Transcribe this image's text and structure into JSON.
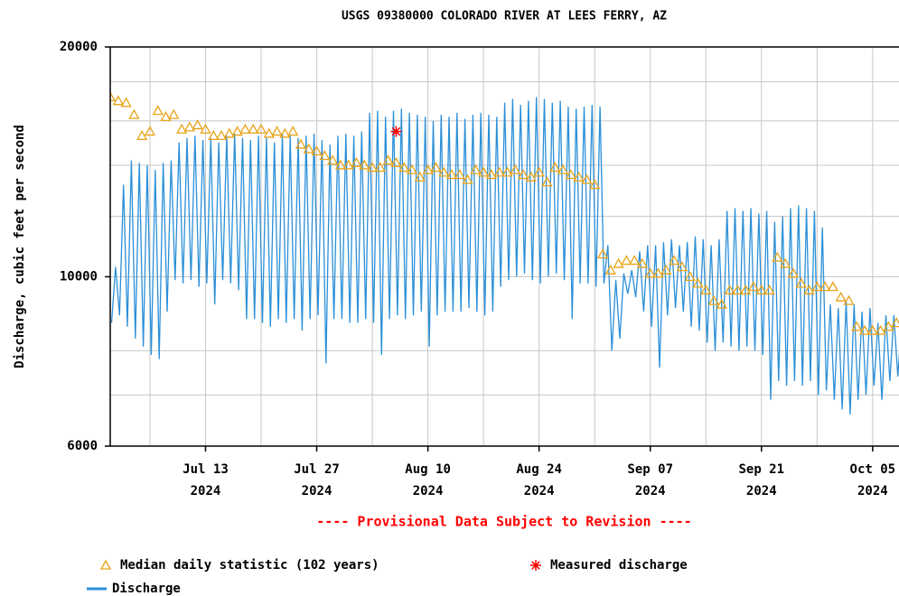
{
  "chart_data": {
    "type": "line",
    "title": "USGS 09380000 COLORADO RIVER AT LEES FERRY, AZ",
    "ylabel": "Discharge, cubic feet per second",
    "note": "---- Provisional Data Subject to Revision ----",
    "yscale": "log",
    "ylim": [
      6000,
      20000
    ],
    "yticks": [
      6000,
      10000,
      20000
    ],
    "ygrid_minor": [
      7000,
      8000,
      12000,
      14000,
      16000,
      18000
    ],
    "xlim": [
      "2024-07-01",
      "2024-10-09"
    ],
    "xticks": [
      {
        "value": "2024-07-13",
        "label": "Jul 13\n2024"
      },
      {
        "value": "2024-07-27",
        "label": "Jul 27\n2024"
      },
      {
        "value": "2024-08-10",
        "label": "Aug 10\n2024"
      },
      {
        "value": "2024-08-24",
        "label": "Aug 24\n2024"
      },
      {
        "value": "2024-09-07",
        "label": "Sep 07\n2024"
      },
      {
        "value": "2024-09-21",
        "label": "Sep 21\n2024"
      },
      {
        "value": "2024-10-05",
        "label": "Oct 05\n2024"
      }
    ],
    "xgrid_minor": [
      "2024-07-06",
      "2024-07-20",
      "2024-08-03",
      "2024-08-17",
      "2024-08-31",
      "2024-09-14",
      "2024-09-28"
    ],
    "grid": true,
    "series": [
      {
        "name": "Median daily statistic (102 years)",
        "marker": "triangle",
        "color": "#e8a317",
        "x": [
          "2024-07-01",
          "2024-07-02",
          "2024-07-03",
          "2024-07-04",
          "2024-07-05",
          "2024-07-06",
          "2024-07-07",
          "2024-07-08",
          "2024-07-09",
          "2024-07-10",
          "2024-07-11",
          "2024-07-12",
          "2024-07-13",
          "2024-07-14",
          "2024-07-15",
          "2024-07-16",
          "2024-07-17",
          "2024-07-18",
          "2024-07-19",
          "2024-07-20",
          "2024-07-21",
          "2024-07-22",
          "2024-07-23",
          "2024-07-24",
          "2024-07-25",
          "2024-07-26",
          "2024-07-27",
          "2024-07-28",
          "2024-07-29",
          "2024-07-30",
          "2024-07-31",
          "2024-08-01",
          "2024-08-02",
          "2024-08-03",
          "2024-08-04",
          "2024-08-05",
          "2024-08-06",
          "2024-08-07",
          "2024-08-08",
          "2024-08-09",
          "2024-08-10",
          "2024-08-11",
          "2024-08-12",
          "2024-08-13",
          "2024-08-14",
          "2024-08-15",
          "2024-08-16",
          "2024-08-17",
          "2024-08-18",
          "2024-08-19",
          "2024-08-20",
          "2024-08-21",
          "2024-08-22",
          "2024-08-23",
          "2024-08-24",
          "2024-08-25",
          "2024-08-26",
          "2024-08-27",
          "2024-08-28",
          "2024-08-29",
          "2024-08-30",
          "2024-08-31",
          "2024-09-01",
          "2024-09-02",
          "2024-09-03",
          "2024-09-04",
          "2024-09-05",
          "2024-09-06",
          "2024-09-07",
          "2024-09-08",
          "2024-09-09",
          "2024-09-10",
          "2024-09-11",
          "2024-09-12",
          "2024-09-13",
          "2024-09-14",
          "2024-09-15",
          "2024-09-16",
          "2024-09-17",
          "2024-09-18",
          "2024-09-19",
          "2024-09-20",
          "2024-09-21",
          "2024-09-22",
          "2024-09-23",
          "2024-09-24",
          "2024-09-25",
          "2024-09-26",
          "2024-09-27",
          "2024-09-28",
          "2024-09-29",
          "2024-09-30",
          "2024-10-01",
          "2024-10-02",
          "2024-10-03",
          "2024-10-04",
          "2024-10-05",
          "2024-10-06",
          "2024-10-07",
          "2024-10-08"
        ],
        "values": [
          17200,
          17000,
          16900,
          16300,
          15300,
          15500,
          16500,
          16200,
          16300,
          15600,
          15700,
          15800,
          15600,
          15300,
          15300,
          15400,
          15500,
          15600,
          15600,
          15600,
          15400,
          15500,
          15400,
          15500,
          14900,
          14700,
          14600,
          14400,
          14200,
          14000,
          14000,
          14100,
          14000,
          13900,
          13900,
          14200,
          14100,
          13900,
          13800,
          13500,
          13800,
          13900,
          13700,
          13600,
          13600,
          13400,
          13800,
          13700,
          13600,
          13700,
          13700,
          13800,
          13600,
          13500,
          13700,
          13300,
          13900,
          13800,
          13600,
          13500,
          13400,
          13200,
          10700,
          10200,
          10400,
          10500,
          10500,
          10400,
          10100,
          10100,
          10200,
          10500,
          10300,
          10000,
          9800,
          9600,
          9300,
          9200,
          9600,
          9600,
          9600,
          9700,
          9600,
          9600,
          10600,
          10400,
          10100,
          9800,
          9600,
          9700,
          9700,
          9700,
          9400,
          9300,
          8600,
          8500,
          8500,
          8500,
          8600,
          8700
        ]
      },
      {
        "name": "Measured discharge",
        "marker": "asterisk",
        "color": "#ff0000",
        "x": [
          "2024-08-06"
        ],
        "values": [
          15500
        ]
      },
      {
        "name": "Discharge",
        "marker": "none",
        "color": "#2b8fd8",
        "x": [
          "2024-07-01T04:00",
          "2024-07-01T16:00",
          "2024-07-02T04:00",
          "2024-07-02T16:00",
          "2024-07-03T04:00",
          "2024-07-03T16:00",
          "2024-07-04T04:00",
          "2024-07-04T16:00",
          "2024-07-05T04:00",
          "2024-07-05T16:00",
          "2024-07-06T04:00",
          "2024-07-06T16:00",
          "2024-07-07T04:00",
          "2024-07-07T16:00",
          "2024-07-08T04:00",
          "2024-07-08T16:00",
          "2024-07-09T04:00",
          "2024-07-09T16:00",
          "2024-07-10T04:00",
          "2024-07-10T16:00",
          "2024-07-11T04:00",
          "2024-07-11T16:00",
          "2024-07-12T04:00",
          "2024-07-12T16:00",
          "2024-07-13T04:00",
          "2024-07-13T16:00",
          "2024-07-14T04:00",
          "2024-07-14T16:00",
          "2024-07-15T04:00",
          "2024-07-15T16:00",
          "2024-07-16T04:00",
          "2024-07-16T16:00",
          "2024-07-17T04:00",
          "2024-07-17T16:00",
          "2024-07-18T04:00",
          "2024-07-18T16:00",
          "2024-07-19T04:00",
          "2024-07-19T16:00",
          "2024-07-20T04:00",
          "2024-07-20T16:00",
          "2024-07-21T04:00",
          "2024-07-21T16:00",
          "2024-07-22T04:00",
          "2024-07-22T16:00",
          "2024-07-23T04:00",
          "2024-07-23T16:00",
          "2024-07-24T04:00",
          "2024-07-24T16:00",
          "2024-07-25T04:00",
          "2024-07-25T16:00",
          "2024-07-26T04:00",
          "2024-07-26T16:00",
          "2024-07-27T04:00",
          "2024-07-27T16:00",
          "2024-07-28T04:00",
          "2024-07-28T16:00",
          "2024-07-29T04:00",
          "2024-07-29T16:00",
          "2024-07-30T04:00",
          "2024-07-30T16:00",
          "2024-07-31T04:00",
          "2024-07-31T16:00",
          "2024-08-01T04:00",
          "2024-08-01T16:00",
          "2024-08-02T04:00",
          "2024-08-02T16:00",
          "2024-08-03T04:00",
          "2024-08-03T16:00",
          "2024-08-04T04:00",
          "2024-08-04T16:00",
          "2024-08-05T04:00",
          "2024-08-05T16:00",
          "2024-08-06T04:00",
          "2024-08-06T16:00",
          "2024-08-07T04:00",
          "2024-08-07T16:00",
          "2024-08-08T04:00",
          "2024-08-08T16:00",
          "2024-08-09T04:00",
          "2024-08-09T16:00",
          "2024-08-10T04:00",
          "2024-08-10T16:00",
          "2024-08-11T04:00",
          "2024-08-11T16:00",
          "2024-08-12T04:00",
          "2024-08-12T16:00",
          "2024-08-13T04:00",
          "2024-08-13T16:00",
          "2024-08-14T04:00",
          "2024-08-14T16:00",
          "2024-08-15T04:00",
          "2024-08-15T16:00",
          "2024-08-16T04:00",
          "2024-08-16T16:00",
          "2024-08-17T04:00",
          "2024-08-17T16:00",
          "2024-08-18T04:00",
          "2024-08-18T16:00",
          "2024-08-19T04:00",
          "2024-08-19T16:00",
          "2024-08-20T04:00",
          "2024-08-20T16:00",
          "2024-08-21T04:00",
          "2024-08-21T16:00",
          "2024-08-22T04:00",
          "2024-08-22T16:00",
          "2024-08-23T04:00",
          "2024-08-23T16:00",
          "2024-08-24T04:00",
          "2024-08-24T16:00",
          "2024-08-25T04:00",
          "2024-08-25T16:00",
          "2024-08-26T04:00",
          "2024-08-26T16:00",
          "2024-08-27T04:00",
          "2024-08-27T16:00",
          "2024-08-28T04:00",
          "2024-08-28T16:00",
          "2024-08-29T04:00",
          "2024-08-29T16:00",
          "2024-08-30T04:00",
          "2024-08-30T16:00",
          "2024-08-31T04:00",
          "2024-08-31T16:00",
          "2024-09-01T04:00",
          "2024-09-01T16:00",
          "2024-09-02T04:00",
          "2024-09-02T16:00",
          "2024-09-03T04:00",
          "2024-09-03T16:00",
          "2024-09-04T04:00",
          "2024-09-04T16:00",
          "2024-09-05T04:00",
          "2024-09-05T16:00",
          "2024-09-06T04:00",
          "2024-09-06T16:00",
          "2024-09-07T04:00",
          "2024-09-07T16:00",
          "2024-09-08T04:00",
          "2024-09-08T16:00",
          "2024-09-09T04:00",
          "2024-09-09T16:00",
          "2024-09-10T04:00",
          "2024-09-10T16:00",
          "2024-09-11T04:00",
          "2024-09-11T16:00",
          "2024-09-12T04:00",
          "2024-09-12T16:00",
          "2024-09-13T04:00",
          "2024-09-13T16:00",
          "2024-09-14T04:00",
          "2024-09-14T16:00",
          "2024-09-15T04:00",
          "2024-09-15T16:00",
          "2024-09-16T04:00",
          "2024-09-16T16:00",
          "2024-09-17T04:00",
          "2024-09-17T16:00",
          "2024-09-18T04:00",
          "2024-09-18T16:00",
          "2024-09-19T04:00",
          "2024-09-19T16:00",
          "2024-09-20T04:00",
          "2024-09-20T16:00",
          "2024-09-21T04:00",
          "2024-09-21T16:00",
          "2024-09-22T04:00",
          "2024-09-22T16:00",
          "2024-09-23T04:00",
          "2024-09-23T16:00",
          "2024-09-24T04:00",
          "2024-09-24T16:00",
          "2024-09-25T04:00",
          "2024-09-25T16:00",
          "2024-09-26T04:00",
          "2024-09-26T16:00",
          "2024-09-27T04:00",
          "2024-09-27T16:00",
          "2024-09-28T04:00",
          "2024-09-28T16:00",
          "2024-09-29T04:00",
          "2024-09-29T16:00",
          "2024-09-30T04:00",
          "2024-09-30T16:00",
          "2024-10-01T04:00",
          "2024-10-01T16:00",
          "2024-10-02T04:00",
          "2024-10-02T16:00",
          "2024-10-03T04:00",
          "2024-10-03T16:00",
          "2024-10-04T04:00",
          "2024-10-04T16:00",
          "2024-10-05T04:00",
          "2024-10-05T16:00",
          "2024-10-06T04:00",
          "2024-10-06T16:00",
          "2024-10-07T04:00",
          "2024-10-07T16:00",
          "2024-10-08T04:00",
          "2024-10-08T16:00"
        ],
        "values": [
          8700,
          10300,
          8900,
          13200,
          8600,
          14200,
          8300,
          14100,
          8100,
          14000,
          7900,
          13800,
          7800,
          14100,
          9000,
          14200,
          9900,
          15000,
          9800,
          15200,
          9900,
          15300,
          9700,
          15100,
          9800,
          15200,
          9200,
          15000,
          9900,
          15300,
          9800,
          15400,
          9600,
          15200,
          8800,
          15100,
          8800,
          15300,
          8700,
          15200,
          8600,
          15000,
          8800,
          15400,
          8700,
          15300,
          8800,
          15200,
          8500,
          15300,
          8800,
          15400,
          8900,
          15100,
          7700,
          14900,
          8800,
          15300,
          8800,
          15400,
          8700,
          15300,
          8700,
          15500,
          8800,
          16400,
          8700,
          16500,
          7900,
          16200,
          8800,
          16500,
          8900,
          16600,
          8800,
          16400,
          8900,
          16300,
          9000,
          16200,
          8100,
          16000,
          8900,
          16300,
          9000,
          16200,
          9000,
          16400,
          9000,
          16100,
          9100,
          16300,
          9000,
          16400,
          8900,
          16300,
          9000,
          16200,
          9700,
          16900,
          9900,
          17100,
          10000,
          16800,
          10100,
          17000,
          9900,
          17200,
          9800,
          17100,
          10000,
          16900,
          10100,
          17000,
          9900,
          16700,
          8800,
          16600,
          9800,
          16700,
          9800,
          16800,
          9700,
          16700,
          9800,
          11000,
          8000,
          9900,
          8300,
          10100,
          9500,
          10200,
          9400,
          10800,
          9000,
          11000,
          8600,
          11000,
          7600,
          11100,
          8900,
          11200,
          9100,
          11000,
          9000,
          11100,
          8600,
          11300,
          8500,
          11200,
          8200,
          11000,
          8000,
          11200,
          8200,
          12200,
          8100,
          12300,
          8000,
          12200,
          8100,
          12300,
          8000,
          12100,
          7900,
          12200,
          6900,
          11800,
          7300,
          12000,
          7200,
          12300,
          7300,
          12400,
          7200,
          12300,
          7300,
          12200,
          7000,
          11600,
          7100,
          9200,
          6900,
          9100,
          6700,
          9300,
          6600,
          9200,
          6900,
          9000,
          7000,
          9100,
          7200,
          8700,
          6900,
          8900,
          7300,
          8900,
          7400,
          8800
        ]
      }
    ]
  }
}
